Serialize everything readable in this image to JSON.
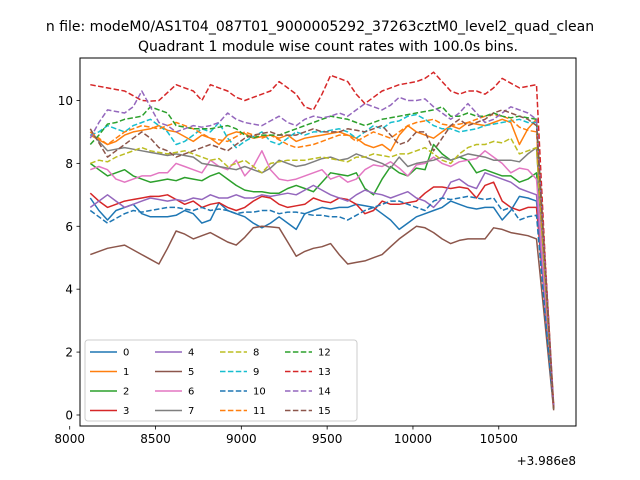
{
  "suptitle": "n file: modeM0/AS1T04_087T01_9000005292_37263cztM0_level2_quad_clean",
  "chart_data": {
    "type": "line",
    "title": "Quadrant 1 module wise count rates with 100.0s bins.",
    "xlabel": "",
    "ylabel": "",
    "x_offset_label": "+3.986e8",
    "xlim": [
      8060,
      10950
    ],
    "ylim": [
      -0.35,
      11.35
    ],
    "xticks": [
      8000,
      8500,
      9000,
      9500,
      10000,
      10500
    ],
    "yticks": [
      0,
      2,
      4,
      6,
      8,
      10
    ],
    "legend_position": "lower-left",
    "grid": false,
    "x": [
      8120,
      8170,
      8220,
      8270,
      8320,
      8370,
      8420,
      8470,
      8520,
      8570,
      8620,
      8670,
      8720,
      8770,
      8820,
      8870,
      8920,
      8970,
      9020,
      9070,
      9120,
      9170,
      9220,
      9270,
      9320,
      9370,
      9420,
      9470,
      9520,
      9570,
      9620,
      9670,
      9720,
      9770,
      9820,
      9870,
      9920,
      9970,
      10020,
      10070,
      10120,
      10170,
      10220,
      10270,
      10320,
      10370,
      10420,
      10470,
      10520,
      10570,
      10620,
      10670,
      10720,
      10770,
      10820
    ],
    "series": [
      {
        "name": "0",
        "color": "#1f77b4",
        "dash": false,
        "values": [
          6.9,
          6.5,
          6.2,
          6.5,
          6.6,
          6.7,
          6.4,
          6.3,
          6.3,
          6.3,
          6.35,
          6.5,
          6.4,
          6.1,
          6.2,
          6.75,
          6.5,
          6.4,
          6.3,
          6.1,
          5.95,
          6.1,
          6.3,
          6.1,
          5.9,
          6.4,
          6.5,
          6.6,
          6.55,
          6.6,
          6.6,
          6.7,
          6.65,
          6.6,
          6.4,
          6.2,
          5.9,
          6.1,
          6.3,
          6.4,
          6.5,
          6.6,
          6.8,
          6.7,
          6.6,
          6.55,
          6.6,
          6.6,
          6.2,
          6.5,
          6.95,
          6.9,
          6.8,
          3.6,
          0.3
        ]
      },
      {
        "name": "1",
        "color": "#ff7f0e",
        "dash": false,
        "values": [
          8.9,
          8.75,
          8.6,
          8.7,
          8.9,
          9.0,
          9.05,
          9.1,
          9.2,
          9.05,
          9.0,
          8.85,
          8.7,
          8.9,
          8.8,
          8.6,
          8.9,
          9.0,
          8.95,
          8.8,
          8.85,
          8.9,
          8.8,
          8.9,
          8.7,
          8.8,
          8.85,
          8.9,
          8.95,
          9.0,
          8.9,
          8.8,
          8.6,
          8.5,
          8.6,
          8.4,
          8.9,
          9.2,
          9.0,
          8.9,
          8.8,
          9.0,
          9.2,
          9.1,
          9.3,
          9.25,
          9.2,
          9.3,
          9.4,
          9.3,
          8.6,
          9.1,
          9.4,
          4.9,
          0.3
        ]
      },
      {
        "name": "2",
        "color": "#2ca02c",
        "dash": false,
        "values": [
          8.0,
          7.8,
          7.6,
          7.7,
          7.8,
          7.6,
          7.5,
          7.4,
          7.45,
          7.5,
          7.45,
          7.55,
          7.5,
          7.45,
          7.6,
          7.7,
          7.5,
          7.3,
          7.15,
          7.1,
          7.1,
          7.05,
          7.05,
          7.2,
          7.3,
          7.2,
          7.1,
          7.4,
          7.7,
          7.65,
          7.6,
          7.7,
          7.2,
          7.0,
          7.5,
          7.9,
          7.7,
          7.6,
          7.85,
          7.8,
          8.6,
          8.3,
          8.1,
          8.2,
          8.1,
          7.7,
          7.8,
          7.7,
          7.6,
          7.6,
          7.4,
          7.5,
          7.7,
          3.9,
          0.25
        ]
      },
      {
        "name": "3",
        "color": "#d62728",
        "dash": false,
        "values": [
          7.05,
          6.8,
          6.6,
          6.7,
          6.8,
          6.85,
          6.9,
          6.95,
          6.95,
          7.0,
          6.85,
          6.7,
          6.8,
          6.6,
          6.7,
          6.75,
          6.6,
          6.5,
          6.6,
          6.8,
          6.95,
          6.9,
          6.7,
          6.6,
          6.65,
          6.7,
          6.9,
          6.8,
          6.75,
          6.9,
          6.85,
          6.7,
          6.4,
          6.5,
          6.8,
          6.7,
          6.7,
          6.75,
          6.8,
          7.05,
          7.25,
          7.25,
          7.2,
          7.25,
          7.2,
          6.9,
          7.3,
          7.4,
          6.8,
          6.6,
          6.5,
          6.6,
          6.6,
          3.5,
          0.2
        ]
      },
      {
        "name": "4",
        "color": "#9467bd",
        "dash": false,
        "values": [
          6.6,
          6.8,
          7.0,
          6.8,
          6.6,
          6.7,
          6.8,
          6.9,
          6.85,
          6.8,
          6.85,
          6.8,
          6.9,
          6.85,
          7.0,
          6.9,
          6.9,
          7.0,
          6.9,
          6.9,
          7.0,
          6.95,
          7.0,
          7.05,
          7.0,
          7.15,
          7.3,
          7.15,
          7.0,
          6.9,
          6.8,
          7.0,
          7.15,
          7.05,
          7.0,
          6.9,
          7.0,
          7.1,
          6.9,
          6.8,
          6.6,
          6.9,
          7.4,
          7.5,
          7.3,
          7.2,
          7.7,
          7.6,
          7.5,
          7.4,
          7.2,
          7.1,
          7.0,
          3.6,
          0.2
        ]
      },
      {
        "name": "5",
        "color": "#8c564b",
        "dash": false,
        "values": [
          5.1,
          5.2,
          5.3,
          5.35,
          5.4,
          5.25,
          5.1,
          4.95,
          4.8,
          5.3,
          5.85,
          5.75,
          5.6,
          5.7,
          5.8,
          5.65,
          5.5,
          5.4,
          5.65,
          5.95,
          6.0,
          5.98,
          5.95,
          5.5,
          5.05,
          5.2,
          5.3,
          5.35,
          5.45,
          5.1,
          4.8,
          4.85,
          4.9,
          5.0,
          5.1,
          5.35,
          5.6,
          5.8,
          6.0,
          5.95,
          5.8,
          5.6,
          5.45,
          5.55,
          5.6,
          5.6,
          5.6,
          5.95,
          5.9,
          5.8,
          5.75,
          5.7,
          5.6,
          2.9,
          0.15
        ]
      },
      {
        "name": "6",
        "color": "#e377c2",
        "dash": false,
        "values": [
          7.8,
          7.9,
          7.8,
          7.5,
          7.4,
          7.5,
          7.6,
          7.6,
          7.7,
          7.7,
          8.0,
          7.9,
          7.8,
          7.7,
          8.1,
          7.9,
          7.8,
          8.1,
          7.6,
          7.9,
          8.4,
          7.8,
          7.5,
          7.45,
          7.5,
          7.6,
          7.7,
          7.8,
          7.5,
          7.6,
          7.4,
          7.5,
          7.8,
          7.95,
          7.9,
          8.05,
          7.85,
          7.6,
          7.95,
          8.0,
          8.2,
          8.0,
          7.9,
          8.05,
          8.1,
          8.15,
          8.4,
          8.2,
          8.0,
          7.7,
          7.85,
          7.8,
          7.5,
          3.9,
          0.2
        ]
      },
      {
        "name": "7",
        "color": "#7f7f7f",
        "dash": false,
        "values": [
          9.0,
          8.7,
          8.4,
          8.45,
          8.5,
          8.45,
          8.4,
          8.35,
          8.3,
          8.25,
          8.3,
          8.25,
          8.2,
          8.0,
          7.95,
          7.9,
          7.85,
          7.8,
          7.9,
          7.8,
          7.7,
          7.85,
          8.1,
          8.0,
          7.9,
          7.95,
          8.05,
          8.15,
          8.2,
          8.1,
          8.15,
          8.3,
          8.2,
          8.1,
          8.0,
          7.85,
          8.2,
          7.9,
          8.0,
          8.05,
          8.1,
          8.2,
          8.1,
          8.2,
          8.3,
          8.25,
          8.2,
          8.1,
          8.1,
          8.1,
          8.05,
          8.3,
          8.5,
          4.3,
          0.2
        ]
      },
      {
        "name": "8",
        "color": "#bcbd22",
        "dash": true,
        "values": [
          8.0,
          8.1,
          8.05,
          8.2,
          8.3,
          8.4,
          8.5,
          8.4,
          8.35,
          8.3,
          8.35,
          8.4,
          8.3,
          8.2,
          8.1,
          8.15,
          7.9,
          8.0,
          8.1,
          7.9,
          7.7,
          8.0,
          8.05,
          8.1,
          8.1,
          8.1,
          8.15,
          8.2,
          8.15,
          8.1,
          8.05,
          8.2,
          8.2,
          8.3,
          8.25,
          8.2,
          8.3,
          8.3,
          8.4,
          8.5,
          8.3,
          8.1,
          8.0,
          8.3,
          8.5,
          8.6,
          8.6,
          8.7,
          8.65,
          8.8,
          8.3,
          8.4,
          8.5,
          4.3,
          0.2
        ]
      },
      {
        "name": "9",
        "color": "#17becf",
        "dash": true,
        "values": [
          8.9,
          9.0,
          9.2,
          9.1,
          9.0,
          9.2,
          9.3,
          9.4,
          9.2,
          9.0,
          8.6,
          8.7,
          8.9,
          9.1,
          9.0,
          9.3,
          8.8,
          8.5,
          8.7,
          8.85,
          9.0,
          8.7,
          8.6,
          8.8,
          9.0,
          8.9,
          9.0,
          9.0,
          9.05,
          9.1,
          9.0,
          8.8,
          9.0,
          9.2,
          9.1,
          9.3,
          9.35,
          9.5,
          9.55,
          9.4,
          9.2,
          9.1,
          9.1,
          9.0,
          9.05,
          9.1,
          9.2,
          9.25,
          9.3,
          9.35,
          9.4,
          9.3,
          9.3,
          4.8,
          0.2
        ]
      },
      {
        "name": "10",
        "color": "#1f77b4",
        "dash": true,
        "values": [
          6.5,
          6.3,
          6.1,
          6.25,
          6.4,
          6.5,
          6.45,
          6.5,
          6.55,
          6.6,
          6.6,
          6.55,
          6.5,
          6.6,
          6.5,
          6.55,
          6.5,
          6.4,
          6.45,
          6.45,
          6.5,
          6.5,
          6.4,
          6.45,
          6.45,
          6.4,
          6.35,
          6.35,
          6.3,
          6.3,
          6.2,
          6.35,
          6.5,
          6.6,
          6.7,
          6.8,
          6.8,
          6.7,
          6.6,
          6.5,
          6.8,
          6.9,
          6.85,
          6.9,
          6.95,
          6.9,
          6.85,
          6.9,
          6.5,
          6.6,
          6.2,
          6.3,
          6.35,
          3.2,
          0.2
        ]
      },
      {
        "name": "11",
        "color": "#ff7f0e",
        "dash": true,
        "values": [
          9.0,
          8.8,
          8.6,
          8.8,
          9.0,
          9.1,
          9.2,
          9.15,
          9.1,
          9.2,
          9.3,
          9.2,
          9.1,
          8.95,
          8.8,
          8.75,
          8.7,
          8.85,
          9.0,
          8.9,
          8.8,
          8.9,
          8.75,
          8.6,
          8.5,
          8.55,
          8.6,
          8.7,
          8.8,
          8.9,
          8.9,
          8.7,
          8.85,
          9.0,
          8.9,
          8.8,
          9.0,
          9.2,
          9.3,
          9.35,
          9.4,
          9.25,
          9.2,
          9.25,
          9.3,
          9.4,
          9.5,
          9.55,
          9.5,
          9.4,
          9.15,
          9.05,
          9.0,
          4.6,
          0.2
        ]
      },
      {
        "name": "12",
        "color": "#2ca02c",
        "dash": true,
        "values": [
          8.6,
          8.9,
          9.25,
          9.3,
          9.4,
          9.45,
          9.5,
          9.8,
          9.7,
          9.6,
          9.2,
          9.15,
          9.1,
          9.1,
          9.1,
          9.15,
          9.2,
          9.1,
          8.9,
          8.8,
          8.9,
          8.9,
          8.9,
          9.0,
          9.1,
          9.2,
          9.3,
          9.4,
          9.5,
          9.45,
          9.4,
          9.3,
          9.2,
          9.3,
          9.4,
          9.45,
          9.5,
          9.55,
          9.6,
          9.65,
          9.7,
          9.8,
          9.5,
          9.5,
          9.6,
          9.5,
          9.5,
          9.6,
          9.5,
          9.45,
          9.5,
          9.45,
          9.4,
          4.8,
          0.2
        ]
      },
      {
        "name": "13",
        "color": "#d62728",
        "dash": true,
        "values": [
          10.5,
          10.45,
          10.4,
          10.35,
          10.3,
          10.15,
          10.0,
          9.98,
          10.0,
          10.25,
          10.5,
          10.4,
          10.3,
          10.0,
          10.5,
          10.4,
          10.3,
          10.1,
          10.0,
          10.1,
          10.2,
          10.3,
          10.6,
          10.4,
          10.2,
          9.8,
          9.7,
          10.2,
          10.8,
          10.7,
          10.6,
          10.2,
          9.9,
          10.1,
          10.3,
          10.4,
          10.5,
          10.55,
          10.6,
          10.7,
          10.9,
          10.6,
          10.3,
          10.2,
          10.3,
          10.3,
          10.2,
          10.4,
          10.7,
          10.55,
          10.4,
          10.45,
          10.5,
          5.0,
          0.2
        ]
      },
      {
        "name": "14",
        "color": "#9467bd",
        "dash": true,
        "values": [
          8.8,
          9.3,
          9.7,
          9.65,
          9.6,
          9.8,
          10.3,
          9.8,
          9.3,
          9.2,
          9.0,
          9.1,
          9.2,
          9.15,
          9.2,
          9.3,
          9.6,
          9.4,
          9.3,
          9.25,
          9.2,
          9.35,
          9.5,
          9.3,
          9.2,
          9.4,
          9.5,
          9.45,
          9.5,
          9.6,
          9.5,
          9.7,
          9.9,
          9.8,
          9.7,
          9.85,
          10.1,
          10.0,
          10.0,
          10.05,
          9.8,
          9.6,
          9.4,
          9.6,
          9.9,
          9.6,
          9.3,
          9.4,
          9.6,
          9.8,
          9.7,
          9.6,
          9.4,
          4.8,
          0.3
        ]
      },
      {
        "name": "15",
        "color": "#8c564b",
        "dash": true,
        "values": [
          9.1,
          8.65,
          8.2,
          8.4,
          8.6,
          8.8,
          9.0,
          8.8,
          8.5,
          8.4,
          8.2,
          8.3,
          8.4,
          8.5,
          8.6,
          8.5,
          8.4,
          8.6,
          8.8,
          8.9,
          8.95,
          9.0,
          8.9,
          8.9,
          8.9,
          9.0,
          9.1,
          9.0,
          9.0,
          9.0,
          9.1,
          9.05,
          9.0,
          9.1,
          9.2,
          8.9,
          8.6,
          8.7,
          9.0,
          9.0,
          8.4,
          8.8,
          9.2,
          9.4,
          9.2,
          9.3,
          9.4,
          9.6,
          9.7,
          9.6,
          9.5,
          9.4,
          9.2,
          4.7,
          0.2
        ]
      }
    ]
  }
}
